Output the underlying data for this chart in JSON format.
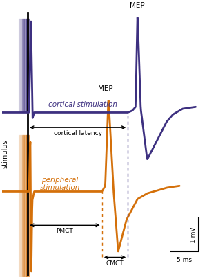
{
  "bg_color": "#ffffff",
  "purple_color": "#3d3080",
  "orange_color": "#d4700a",
  "cortical_label": "cortical stimulation",
  "peripheral_label": "peripheral\nstimulation",
  "mep_label_top": "MEP",
  "mep_label_mid": "MEP",
  "cortical_latency_label": "cortical latency",
  "pmct_label": "PMCT",
  "cmct_label": "CMCT",
  "stimulus_label": "stimulus",
  "scale_mV": "1 mV",
  "scale_ms": "5 ms",
  "figsize": [
    3.13,
    4.0
  ],
  "dpi": 100,
  "xlim": [
    -3,
    30
  ],
  "ylim": [
    -5.5,
    9.0
  ],
  "stim_x": 1.5,
  "cortical_flat_y": 3.2,
  "orange_flat_y": -1.0,
  "purple_mep_x": 18.0,
  "purple_mep_peak": 8.5,
  "orange_mep_x": 13.5,
  "orange_mep_peak": 4.0,
  "cmct_start_x": 13.5,
  "cmct_end_x": 18.0
}
